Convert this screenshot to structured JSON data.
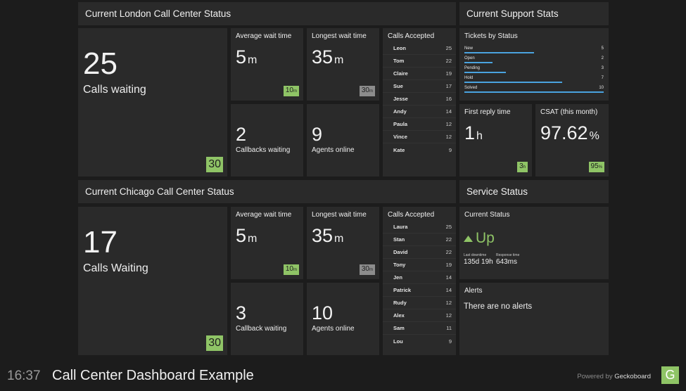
{
  "london": {
    "header": "Current London Call Center Status",
    "calls_waiting": {
      "value": "25",
      "label": "Calls waiting",
      "badge": "30"
    },
    "avg_wait": {
      "title": "Average wait time",
      "value": "5",
      "unit": "m",
      "badge": "10",
      "badge_unit": "m"
    },
    "longest_wait": {
      "title": "Longest wait time",
      "value": "35",
      "unit": "m",
      "badge": "30",
      "badge_unit": "m"
    },
    "callbacks": {
      "value": "2",
      "label": "Callbacks waiting"
    },
    "agents": {
      "value": "9",
      "label": "Agents online"
    },
    "calls_accepted": {
      "title": "Calls Accepted",
      "rows": [
        {
          "name": "Leon",
          "value": "25"
        },
        {
          "name": "Tom",
          "value": "22"
        },
        {
          "name": "Claire",
          "value": "19"
        },
        {
          "name": "Sue",
          "value": "17"
        },
        {
          "name": "Jesse",
          "value": "16"
        },
        {
          "name": "Andy",
          "value": "14"
        },
        {
          "name": "Paula",
          "value": "12"
        },
        {
          "name": "Vince",
          "value": "12"
        },
        {
          "name": "Kate",
          "value": "9"
        }
      ]
    }
  },
  "support": {
    "header": "Current Support Stats",
    "tickets": {
      "title": "Tickets by Status",
      "max": 10,
      "rows": [
        {
          "label": "New",
          "value": "5"
        },
        {
          "label": "Open",
          "value": "2"
        },
        {
          "label": "Pending",
          "value": "3"
        },
        {
          "label": "Hold",
          "value": "7"
        },
        {
          "label": "Solved",
          "value": "10"
        }
      ]
    },
    "first_reply": {
      "title": "First reply time",
      "value": "1",
      "unit": "h",
      "badge": "3",
      "badge_unit": "h"
    },
    "csat": {
      "title": "CSAT (this month)",
      "value": "97.62",
      "unit": "%",
      "badge": "95",
      "badge_unit": "%"
    }
  },
  "chicago": {
    "header": "Current Chicago Call Center Status",
    "calls_waiting": {
      "value": "17",
      "label": "Calls Waiting",
      "badge": "30"
    },
    "avg_wait": {
      "title": "Average wait time",
      "value": "5",
      "unit": "m",
      "badge": "10",
      "badge_unit": "m"
    },
    "longest_wait": {
      "title": "Longest wait time",
      "value": "35",
      "unit": "m",
      "badge": "30",
      "badge_unit": "m"
    },
    "callbacks": {
      "value": "3",
      "label": "Callback waiting"
    },
    "agents": {
      "value": "10",
      "label": "Agents online"
    },
    "calls_accepted": {
      "title": "Calls Accepted",
      "rows": [
        {
          "name": "Laura",
          "value": "25"
        },
        {
          "name": "Stan",
          "value": "22"
        },
        {
          "name": "David",
          "value": "22"
        },
        {
          "name": "Tony",
          "value": "19"
        },
        {
          "name": "Jen",
          "value": "14"
        },
        {
          "name": "Patrick",
          "value": "14"
        },
        {
          "name": "Rudy",
          "value": "12"
        },
        {
          "name": "Alex",
          "value": "12"
        },
        {
          "name": "Sam",
          "value": "11"
        },
        {
          "name": "Lou",
          "value": "9"
        }
      ]
    }
  },
  "service": {
    "header": "Service Status",
    "current": {
      "title": "Current Status",
      "status": "Up",
      "status_icon": "triangle-up-icon",
      "downtime_label": "Last downtime",
      "downtime_value": "135d 19h",
      "response_label": "Response time",
      "response_value": "643ms"
    },
    "alerts": {
      "title": "Alerts",
      "message": "There are no alerts"
    }
  },
  "footer": {
    "time": "16:37",
    "title": "Call Center Dashboard Example",
    "powered_prefix": "Powered by ",
    "powered_brand": "Geckoboard",
    "logo_letter": "G"
  },
  "colors": {
    "accent_green": "#8fc466",
    "bar_blue": "#4aa3df",
    "badge_gray": "#8c8c8c",
    "status_up": "#8fc466"
  }
}
